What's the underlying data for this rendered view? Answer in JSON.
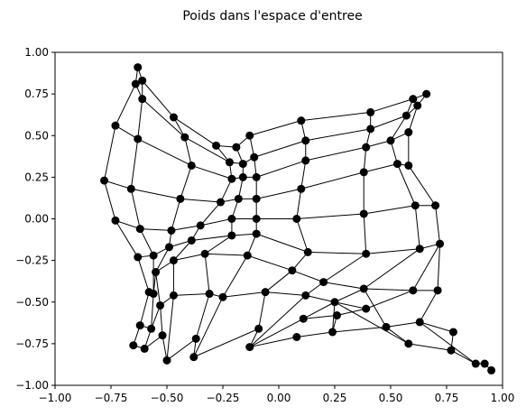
{
  "chart_data": {
    "type": "scatter",
    "title": "Poids dans l'espace d'entree",
    "xlabel": "",
    "ylabel": "",
    "xlim": [
      -1.0,
      1.0
    ],
    "ylim": [
      -1.0,
      1.0
    ],
    "grid": false,
    "x_ticks": [
      "−1.00",
      "−0.75",
      "−0.50",
      "−0.25",
      "0.00",
      "0.25",
      "0.50",
      "0.75",
      "1.00"
    ],
    "y_ticks": [
      "−1.00",
      "−0.75",
      "−0.50",
      "−0.25",
      "0.00",
      "0.25",
      "0.50",
      "0.75",
      "1.00"
    ],
    "marker_color": "#000000",
    "line_color": "#000000",
    "nodes": [
      [
        [
          -0.63,
          0.91
        ],
        [
          -0.64,
          0.81
        ],
        [
          -0.73,
          0.56
        ],
        [
          -0.78,
          0.23
        ],
        [
          -0.73,
          -0.01
        ],
        [
          -0.63,
          -0.23
        ],
        [
          -0.58,
          -0.44
        ],
        [
          -0.62,
          -0.64
        ],
        [
          -0.65,
          -0.76
        ]
      ],
      [
        [
          -0.61,
          0.83
        ],
        [
          -0.61,
          0.72
        ],
        [
          -0.63,
          0.48
        ],
        [
          -0.66,
          0.18
        ],
        [
          -0.62,
          -0.06
        ],
        [
          -0.56,
          -0.22
        ],
        [
          -0.56,
          -0.45
        ],
        [
          -0.57,
          -0.66
        ],
        [
          -0.6,
          -0.78
        ]
      ],
      [
        [
          -0.47,
          0.61
        ],
        [
          -0.42,
          0.49
        ],
        [
          -0.39,
          0.32
        ],
        [
          -0.44,
          0.12
        ],
        [
          -0.48,
          -0.07
        ],
        [
          -0.49,
          -0.17
        ],
        [
          -0.55,
          -0.32
        ],
        [
          -0.53,
          -0.52
        ],
        [
          -0.52,
          -0.7
        ]
      ],
      [
        [
          -0.28,
          0.44
        ],
        [
          -0.22,
          0.34
        ],
        [
          -0.21,
          0.24
        ],
        [
          -0.26,
          0.1
        ],
        [
          -0.35,
          -0.04
        ],
        [
          -0.39,
          -0.13
        ],
        [
          -0.47,
          -0.25
        ],
        [
          -0.47,
          -0.46
        ],
        [
          -0.5,
          -0.85
        ]
      ],
      [
        [
          -0.19,
          0.43
        ],
        [
          -0.16,
          0.33
        ],
        [
          -0.16,
          0.25
        ],
        [
          -0.18,
          0.12
        ],
        [
          -0.21,
          0.0
        ],
        [
          -0.21,
          -0.1
        ],
        [
          -0.33,
          -0.21
        ],
        [
          -0.31,
          -0.45
        ],
        [
          -0.37,
          -0.72
        ]
      ],
      [
        [
          -0.13,
          0.5
        ],
        [
          -0.11,
          0.37
        ],
        [
          -0.1,
          0.25
        ],
        [
          -0.1,
          0.12
        ],
        [
          -0.1,
          0.0
        ],
        [
          -0.1,
          -0.09
        ],
        [
          -0.14,
          -0.22
        ],
        [
          -0.25,
          -0.47
        ],
        [
          -0.38,
          -0.83
        ]
      ],
      [
        [
          0.1,
          0.59
        ],
        [
          0.12,
          0.47
        ],
        [
          0.12,
          0.35
        ],
        [
          0.1,
          0.18
        ],
        [
          0.08,
          0.0
        ],
        [
          0.13,
          -0.2
        ],
        [
          0.06,
          -0.31
        ],
        [
          -0.06,
          -0.44
        ],
        [
          -0.09,
          -0.66
        ]
      ],
      [
        [
          0.41,
          0.64
        ],
        [
          0.41,
          0.54
        ],
        [
          0.39,
          0.43
        ],
        [
          0.38,
          0.28
        ],
        [
          0.38,
          0.03
        ],
        [
          0.39,
          -0.21
        ],
        [
          0.2,
          -0.38
        ],
        [
          0.12,
          -0.46
        ],
        [
          -0.13,
          -0.77
        ]
      ],
      [
        [
          0.6,
          0.72
        ],
        [
          0.57,
          0.62
        ],
        [
          0.5,
          0.47
        ],
        [
          0.53,
          0.33
        ],
        [
          0.61,
          0.08
        ],
        [
          0.63,
          -0.18
        ],
        [
          0.38,
          -0.42
        ],
        [
          0.25,
          -0.5
        ],
        [
          0.11,
          -0.6
        ]
      ],
      [
        [
          0.66,
          0.75
        ],
        [
          0.62,
          0.68
        ],
        [
          0.58,
          0.52
        ],
        [
          0.58,
          0.32
        ],
        [
          0.7,
          0.08
        ],
        [
          0.72,
          -0.15
        ],
        [
          0.6,
          -0.43
        ],
        [
          0.39,
          -0.54
        ],
        [
          0.26,
          -0.58
        ]
      ],
      [
        [
          0.92,
          -0.87
        ],
        [
          0.88,
          -0.87
        ],
        [
          0.77,
          -0.79
        ],
        [
          0.58,
          -0.75
        ],
        [
          0.48,
          -0.65
        ],
        [
          0.63,
          -0.62
        ],
        [
          0.71,
          -0.43
        ],
        [
          0.08,
          -0.71
        ],
        [
          0.24,
          -0.68
        ]
      ],
      [
        [
          0.95,
          -0.91
        ],
        [
          0.78,
          -0.68
        ],
        [
          0.0,
          0.0
        ],
        [
          0.0,
          0.0
        ],
        [
          0.0,
          0.0
        ],
        [
          0.0,
          0.0
        ],
        [
          0.0,
          0.0
        ],
        [
          0.0,
          0.0
        ],
        [
          0.0,
          0.0
        ]
      ]
    ]
  }
}
